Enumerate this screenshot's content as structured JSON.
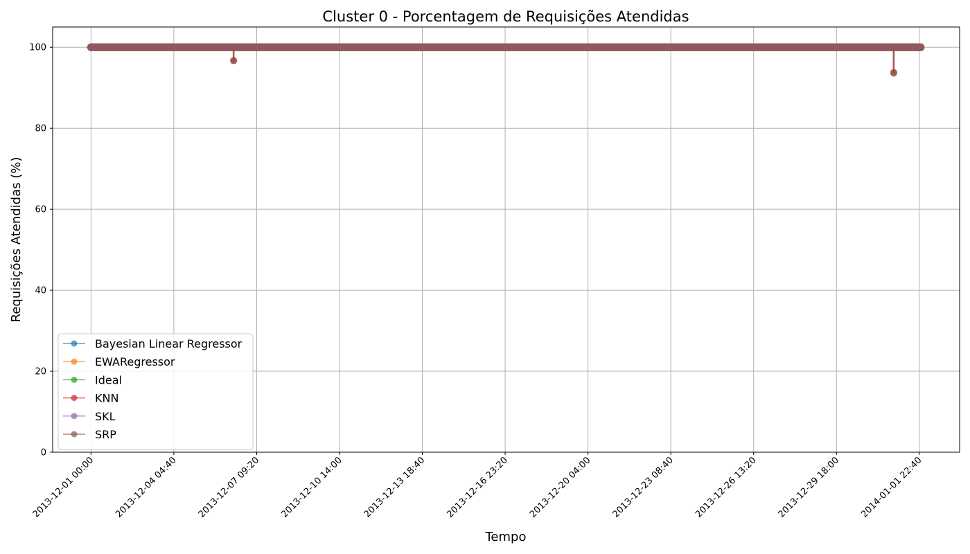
{
  "chart_data": {
    "type": "line",
    "title": "Cluster 0 - Porcentagem de Requisições Atendidas",
    "xlabel": "Tempo",
    "ylabel": "Requisições Atendidas (%)",
    "ylim": [
      0,
      105
    ],
    "yticks": [
      0,
      20,
      40,
      60,
      80,
      100
    ],
    "xlim": [
      "2013-11-29 12:30",
      "2014-01-03 12:00"
    ],
    "xticks": [
      "2013-12-01 00:00",
      "2013-12-04 04:40",
      "2013-12-07 09:20",
      "2013-12-10 14:00",
      "2013-12-13 18:40",
      "2013-12-16 23:20",
      "2013-12-20 04:00",
      "2013-12-23 08:40",
      "2013-12-26 13:20",
      "2013-12-29 18:00",
      "2014-01-01 22:40"
    ],
    "grid": true,
    "legend_position": "lower-left",
    "series": [
      {
        "name": "Bayesian Linear Regressor",
        "color": "#1f77b4",
        "start": "2013-12-01 00:00",
        "end": "2014-01-02 00:00",
        "baseline": 100,
        "dips": []
      },
      {
        "name": "EWARegressor",
        "color": "#ff7f0e",
        "start": "2013-12-01 00:00",
        "end": "2014-01-02 00:00",
        "baseline": 100,
        "dips": []
      },
      {
        "name": "Ideal",
        "color": "#2ca02c",
        "start": "2013-12-01 00:00",
        "end": "2014-01-02 00:00",
        "baseline": 100,
        "dips": []
      },
      {
        "name": "KNN",
        "color": "#d62728",
        "start": "2013-12-01 00:00",
        "end": "2014-01-02 00:00",
        "baseline": 100,
        "dips": [
          {
            "x": "2013-12-06 12:00",
            "y": 96.7
          },
          {
            "x": "2013-12-31 23:00",
            "y": 93.8
          }
        ]
      },
      {
        "name": "SKL",
        "color": "#9467bd",
        "start": "2013-12-01 00:00",
        "end": "2014-01-02 00:00",
        "baseline": 100,
        "dips": []
      },
      {
        "name": "SRP",
        "color": "#8c564b",
        "start": "2013-12-01 00:00",
        "end": "2014-01-02 00:00",
        "baseline": 100,
        "dips": [
          {
            "x": "2013-12-06 12:00",
            "y": 96.7
          },
          {
            "x": "2013-12-31 23:00",
            "y": 93.6
          }
        ]
      }
    ]
  }
}
